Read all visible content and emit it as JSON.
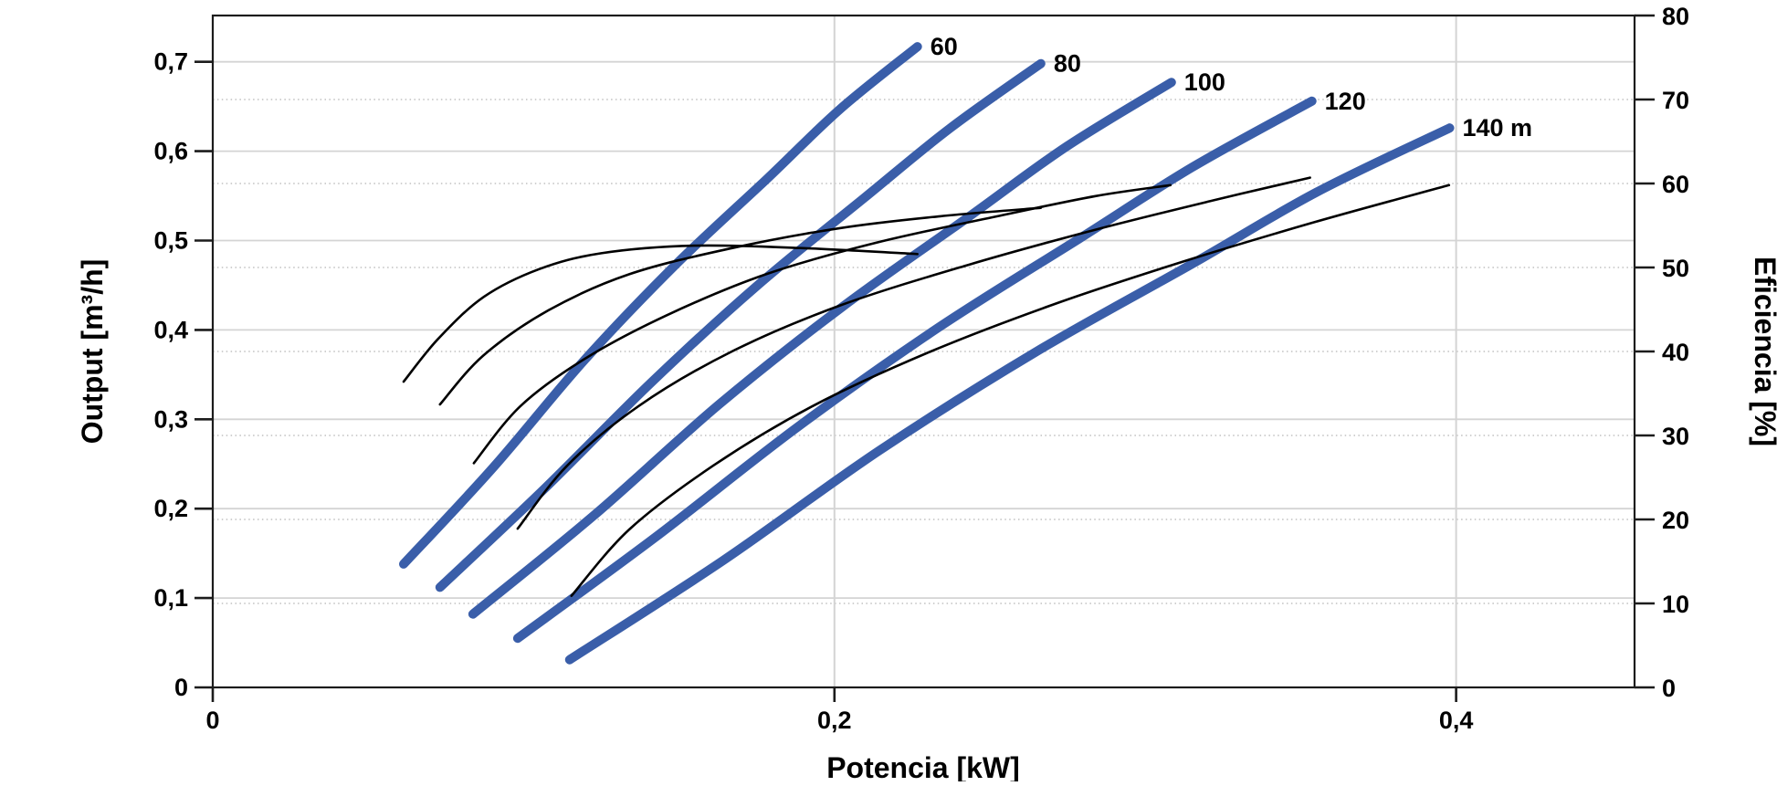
{
  "chart_data": {
    "type": "line",
    "title": "",
    "x_axis": {
      "label": "Potencia [kW]",
      "min": 0,
      "max": 0.4574,
      "ticks": [
        {
          "v": 0,
          "label": "0"
        },
        {
          "v": 0.2,
          "label": "0,2"
        },
        {
          "v": 0.4,
          "label": "0,4"
        }
      ],
      "gridlines": [
        0.2,
        0.4
      ]
    },
    "y_left": {
      "label": "Output [m³/h]",
      "min": 0,
      "max": 0.7518,
      "ticks": [
        {
          "v": 0,
          "label": "0"
        },
        {
          "v": 0.1,
          "label": "0,1"
        },
        {
          "v": 0.2,
          "label": "0,2"
        },
        {
          "v": 0.3,
          "label": "0,3"
        },
        {
          "v": 0.4,
          "label": "0,4"
        },
        {
          "v": 0.5,
          "label": "0,5"
        },
        {
          "v": 0.6,
          "label": "0,6"
        },
        {
          "v": 0.7,
          "label": "0,7"
        }
      ],
      "gridlines": [
        0.1,
        0.2,
        0.3,
        0.4,
        0.5,
        0.6,
        0.7
      ],
      "gridline_style": "solid"
    },
    "y_right": {
      "label": "Eficiencia [%]",
      "min": 0,
      "max": 80,
      "ticks": [
        {
          "v": 0,
          "label": "0"
        },
        {
          "v": 10,
          "label": "10"
        },
        {
          "v": 20,
          "label": "20"
        },
        {
          "v": 30,
          "label": "30"
        },
        {
          "v": 40,
          "label": "40"
        },
        {
          "v": 50,
          "label": "50"
        },
        {
          "v": 60,
          "label": "60"
        },
        {
          "v": 70,
          "label": "70"
        },
        {
          "v": 80,
          "label": "80"
        }
      ],
      "gridlines": [
        10,
        20,
        30,
        40,
        50,
        60,
        70
      ],
      "gridline_style": "dotted"
    },
    "colors": {
      "head_curve": "#3a5ea9",
      "efficiency_curve": "#000000",
      "grid_solid": "#d4d4d4",
      "grid_dotted": "#d0d0d0",
      "axis": "#1c1c1c"
    },
    "series": [
      {
        "id": "head-60",
        "kind": "head",
        "axis": "left",
        "label": "60",
        "points": [
          [
            0.0614,
            0.138
          ],
          [
            0.0902,
            0.246
          ],
          [
            0.1195,
            0.366
          ],
          [
            0.1489,
            0.473
          ],
          [
            0.1783,
            0.569
          ],
          [
            0.2018,
            0.647
          ],
          [
            0.2267,
            0.717
          ]
        ]
      },
      {
        "id": "head-80",
        "kind": "head",
        "axis": "left",
        "label": "80",
        "points": [
          [
            0.0731,
            0.112
          ],
          [
            0.1066,
            0.222
          ],
          [
            0.1413,
            0.342
          ],
          [
            0.1753,
            0.45
          ],
          [
            0.2097,
            0.548
          ],
          [
            0.2373,
            0.626
          ],
          [
            0.2664,
            0.698
          ]
        ]
      },
      {
        "id": "head-100",
        "kind": "head",
        "axis": "left",
        "label": "100",
        "points": [
          [
            0.0837,
            0.082
          ],
          [
            0.1228,
            0.193
          ],
          [
            0.1627,
            0.316
          ],
          [
            0.2026,
            0.426
          ],
          [
            0.2426,
            0.525
          ],
          [
            0.2746,
            0.605
          ],
          [
            0.3084,
            0.677
          ]
        ]
      },
      {
        "id": "head-120",
        "kind": "head",
        "axis": "left",
        "label": "120",
        "points": [
          [
            0.0981,
            0.055
          ],
          [
            0.1424,
            0.168
          ],
          [
            0.188,
            0.291
          ],
          [
            0.2332,
            0.402
          ],
          [
            0.2787,
            0.502
          ],
          [
            0.3151,
            0.582
          ],
          [
            0.3536,
            0.656
          ]
        ]
      },
      {
        "id": "head-140",
        "kind": "head",
        "axis": "left",
        "label": "140 m",
        "points": [
          [
            0.1148,
            0.031
          ],
          [
            0.1642,
            0.142
          ],
          [
            0.2144,
            0.265
          ],
          [
            0.2646,
            0.375
          ],
          [
            0.3151,
            0.474
          ],
          [
            0.3551,
            0.554
          ],
          [
            0.3979,
            0.626
          ]
        ]
      },
      {
        "id": "eff-60",
        "kind": "efficiency",
        "axis": "right",
        "label": "",
        "points": [
          [
            0.0614,
            36.4
          ],
          [
            0.0725,
            41.5
          ],
          [
            0.0872,
            46.5
          ],
          [
            0.105,
            49.8
          ],
          [
            0.125,
            51.7
          ],
          [
            0.155,
            52.6
          ],
          [
            0.19,
            52.3
          ],
          [
            0.2267,
            51.6
          ]
        ]
      },
      {
        "id": "eff-80",
        "kind": "efficiency",
        "axis": "right",
        "label": "",
        "points": [
          [
            0.0731,
            33.7
          ],
          [
            0.087,
            39.5
          ],
          [
            0.108,
            44.9
          ],
          [
            0.134,
            49.2
          ],
          [
            0.167,
            52.3
          ],
          [
            0.202,
            54.7
          ],
          [
            0.234,
            56.1
          ],
          [
            0.2664,
            57.1
          ]
        ]
      },
      {
        "id": "eff-100",
        "kind": "efficiency",
        "axis": "right",
        "label": "",
        "points": [
          [
            0.084,
            26.7
          ],
          [
            0.099,
            33.5
          ],
          [
            0.12,
            39.2
          ],
          [
            0.146,
            44.3
          ],
          [
            0.178,
            49.2
          ],
          [
            0.214,
            53.0
          ],
          [
            0.255,
            56.3
          ],
          [
            0.284,
            58.5
          ],
          [
            0.3081,
            59.8
          ]
        ]
      },
      {
        "id": "eff-120",
        "kind": "efficiency",
        "axis": "right",
        "label": "",
        "points": [
          [
            0.0981,
            18.9
          ],
          [
            0.114,
            26.4
          ],
          [
            0.137,
            33.5
          ],
          [
            0.167,
            40.0
          ],
          [
            0.202,
            45.5
          ],
          [
            0.243,
            50.3
          ],
          [
            0.284,
            54.5
          ],
          [
            0.322,
            58.0
          ],
          [
            0.353,
            60.7
          ]
        ]
      },
      {
        "id": "eff-140",
        "kind": "efficiency",
        "axis": "right",
        "label": "",
        "points": [
          [
            0.1154,
            10.9
          ],
          [
            0.134,
            18.8
          ],
          [
            0.161,
            26.4
          ],
          [
            0.193,
            33.5
          ],
          [
            0.231,
            40.0
          ],
          [
            0.272,
            45.8
          ],
          [
            0.313,
            50.8
          ],
          [
            0.3545,
            55.4
          ],
          [
            0.3977,
            59.8
          ]
        ]
      }
    ]
  }
}
